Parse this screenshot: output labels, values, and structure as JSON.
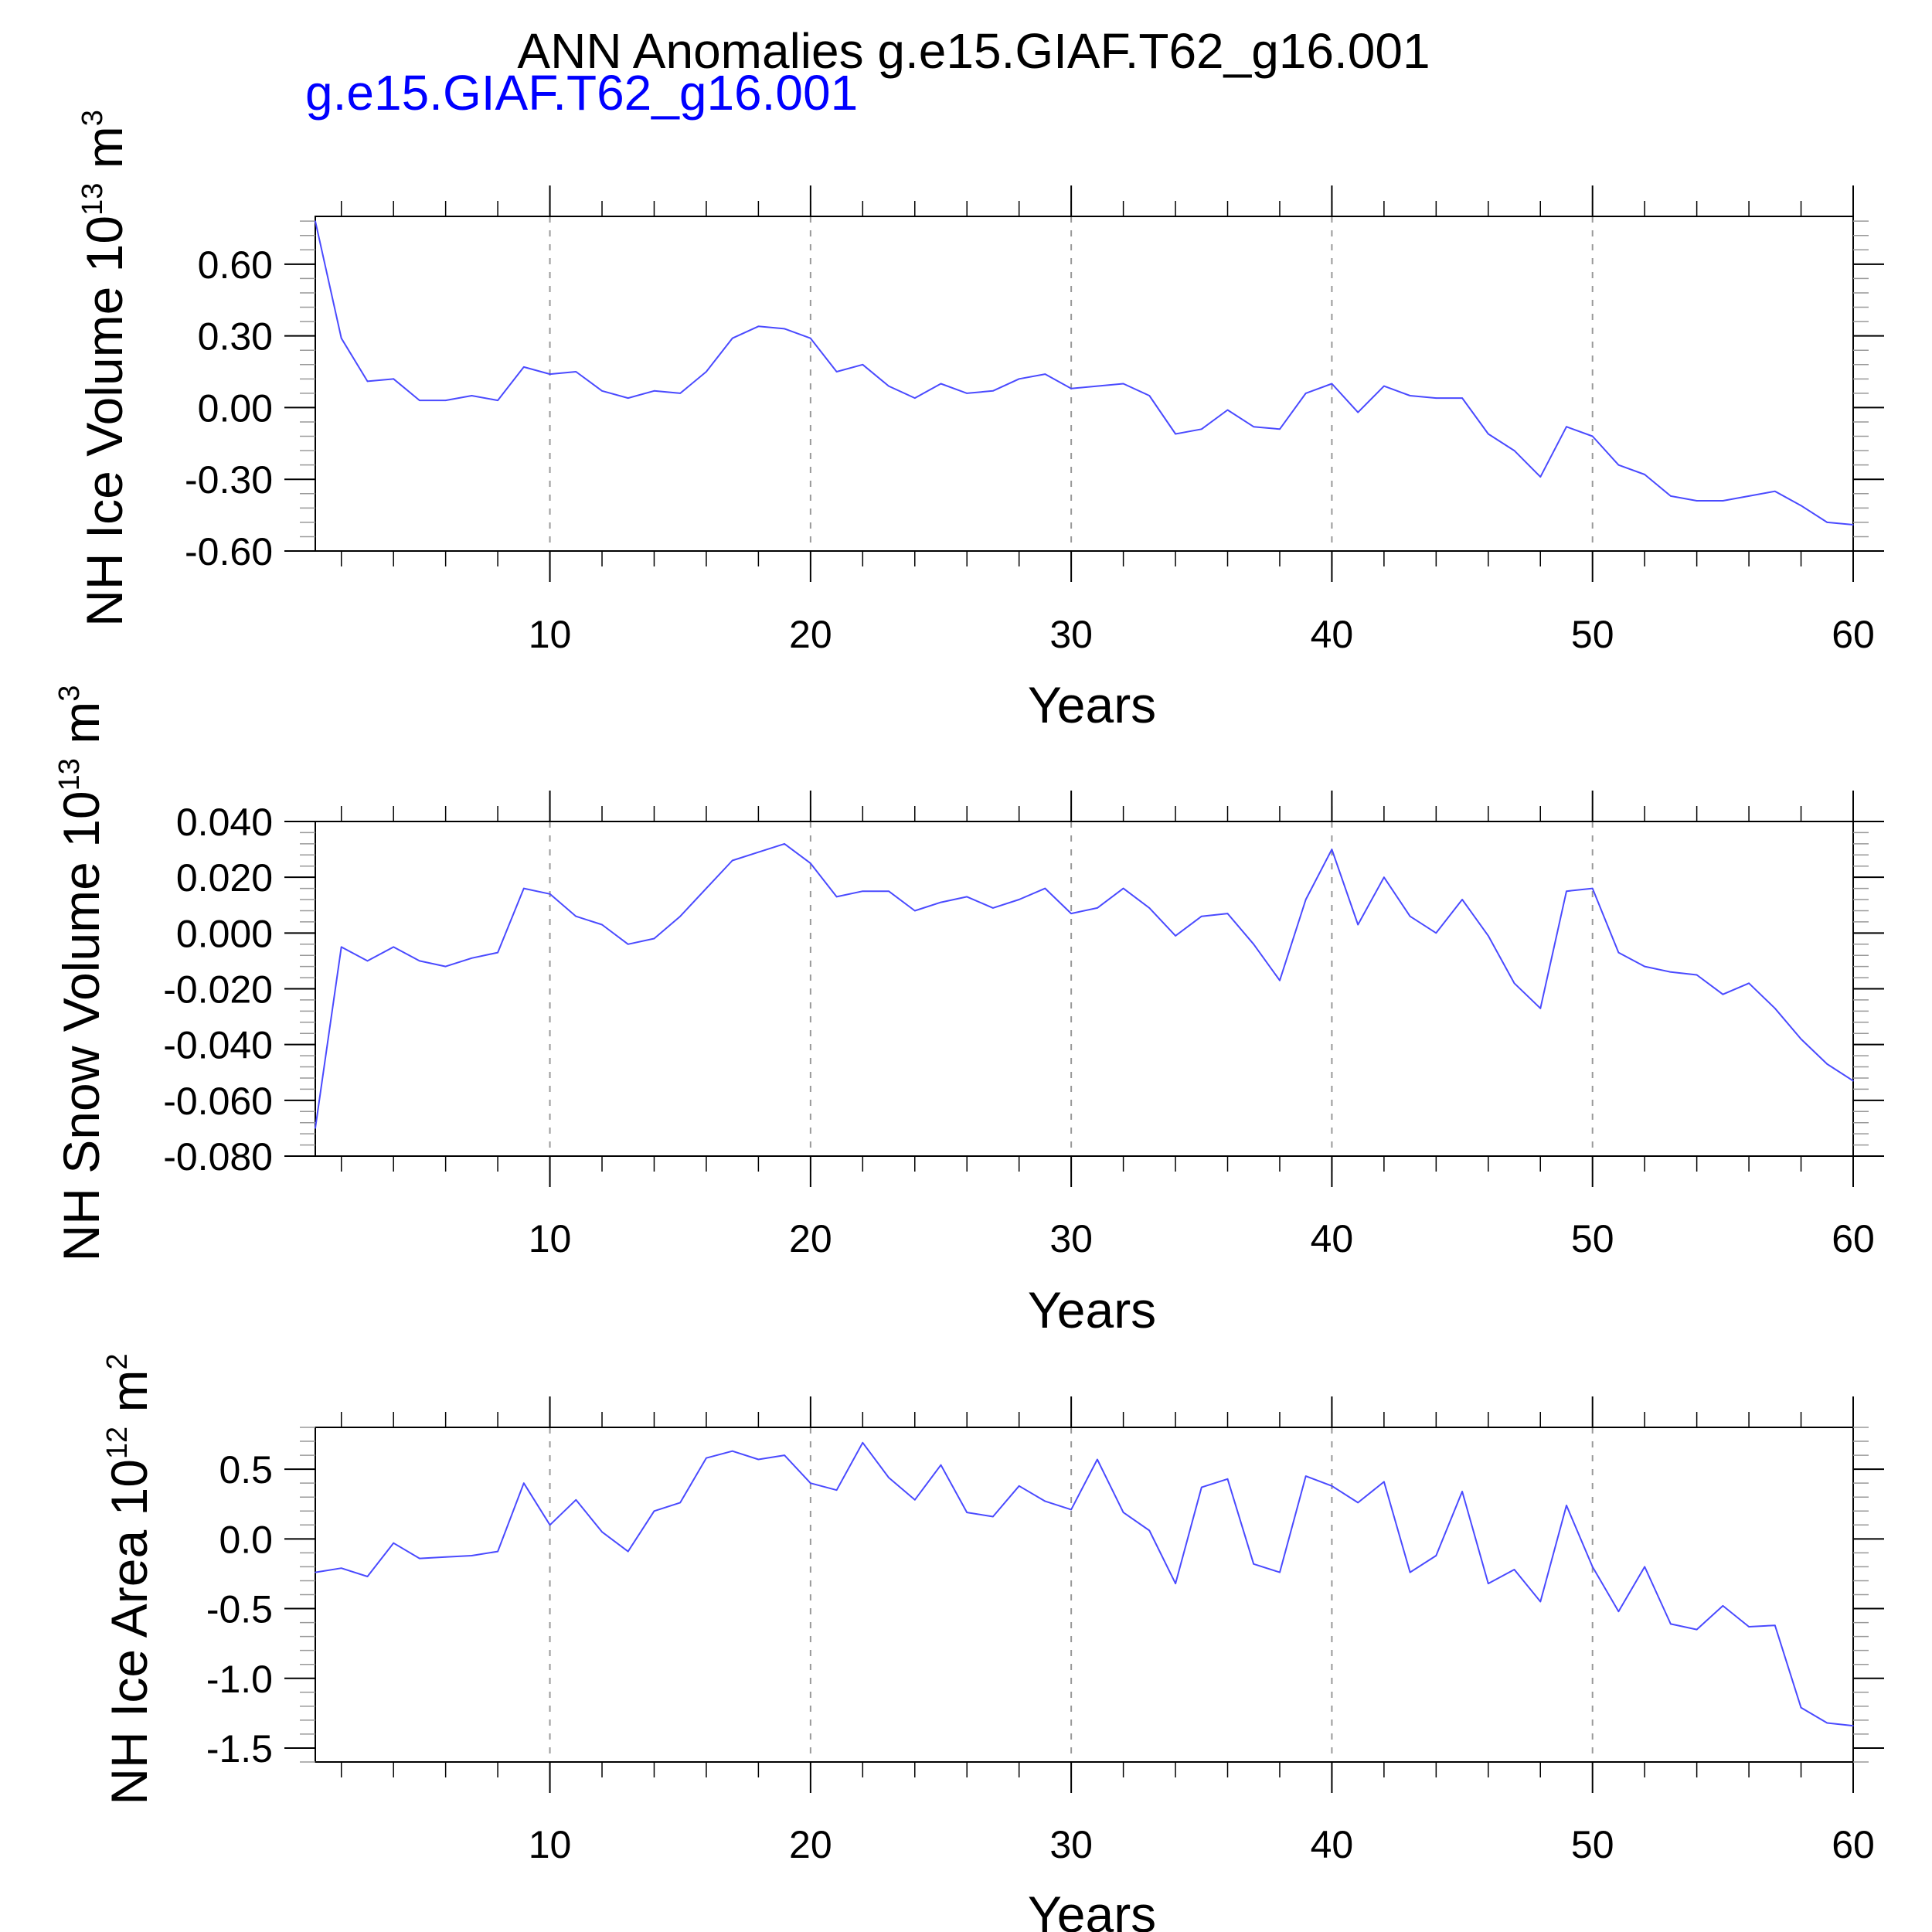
{
  "title": "ANN Anomalies g.e15.GIAF.T62_g16.001",
  "subtitle": "g.e15.GIAF.T62_g16.001",
  "colors": {
    "series": "#4a4aff",
    "subtitle": "#0000ff",
    "axis": "#000000",
    "grid": "#999999"
  },
  "chart_data": [
    {
      "type": "line",
      "ylabel": "NH Ice Volume 10",
      "ylabel_exponent": "13",
      "ylabel_unit": "m",
      "ylabel_unit_power": "3",
      "xlabel": "Years",
      "xlim": [
        1,
        60
      ],
      "ylim": [
        -0.6,
        0.8
      ],
      "yticks": [
        -0.6,
        -0.3,
        0.0,
        0.3,
        0.6
      ],
      "yticklabels": [
        "-0.60",
        "-0.30",
        "0.00",
        "0.30",
        "0.60"
      ],
      "xticks": [
        10,
        20,
        30,
        40,
        50,
        60
      ],
      "xticklabels": [
        "10",
        "20",
        "30",
        "40",
        "50",
        "60"
      ],
      "grid": "vertical dashed at major x ticks",
      "series": [
        {
          "x": [
            1,
            2,
            3,
            4,
            5,
            6,
            7,
            8,
            9,
            10,
            11,
            12,
            13,
            14,
            15,
            16,
            17,
            18,
            19,
            20,
            21,
            22,
            23,
            24,
            25,
            26,
            27,
            28,
            29,
            30,
            31,
            32,
            33,
            34,
            35,
            36,
            37,
            38,
            39,
            40,
            41,
            42,
            43,
            44,
            45,
            46,
            47,
            48,
            49,
            50,
            51,
            52,
            53,
            54,
            55,
            56,
            57,
            58,
            59,
            60
          ],
          "values": [
            0.78,
            0.29,
            0.11,
            0.12,
            0.03,
            0.03,
            0.05,
            0.03,
            0.17,
            0.14,
            0.15,
            0.07,
            0.04,
            0.07,
            0.06,
            0.15,
            0.29,
            0.34,
            0.33,
            0.29,
            0.15,
            0.18,
            0.09,
            0.04,
            0.1,
            0.06,
            0.07,
            0.12,
            0.14,
            0.08,
            0.09,
            0.1,
            0.05,
            -0.11,
            -0.09,
            -0.01,
            -0.08,
            -0.09,
            0.06,
            0.1,
            -0.02,
            0.09,
            0.05,
            0.04,
            0.04,
            -0.11,
            -0.18,
            -0.29,
            -0.08,
            -0.12,
            -0.24,
            -0.28,
            -0.37,
            -0.39,
            -0.39,
            -0.37,
            -0.35,
            -0.41,
            -0.48,
            -0.49
          ]
        }
      ]
    },
    {
      "type": "line",
      "ylabel": "NH Snow Volume 10",
      "ylabel_exponent": "13",
      "ylabel_unit": "m",
      "ylabel_unit_power": "3",
      "xlabel": "Years",
      "xlim": [
        1,
        60
      ],
      "ylim": [
        -0.08,
        0.04
      ],
      "yticks": [
        -0.08,
        -0.06,
        -0.04,
        -0.02,
        0.0,
        0.02,
        0.04
      ],
      "yticklabels": [
        "-0.080",
        "-0.060",
        "-0.040",
        "-0.020",
        "0.000",
        "0.020",
        "0.040"
      ],
      "xticks": [
        10,
        20,
        30,
        40,
        50,
        60
      ],
      "xticklabels": [
        "10",
        "20",
        "30",
        "40",
        "50",
        "60"
      ],
      "grid": "vertical dashed at major x ticks",
      "series": [
        {
          "x": [
            1,
            2,
            3,
            4,
            5,
            6,
            7,
            8,
            9,
            10,
            11,
            12,
            13,
            14,
            15,
            16,
            17,
            18,
            19,
            20,
            21,
            22,
            23,
            24,
            25,
            26,
            27,
            28,
            29,
            30,
            31,
            32,
            33,
            34,
            35,
            36,
            37,
            38,
            39,
            40,
            41,
            42,
            43,
            44,
            45,
            46,
            47,
            48,
            49,
            50,
            51,
            52,
            53,
            54,
            55,
            56,
            57,
            58,
            59,
            60
          ],
          "values": [
            -0.07,
            -0.005,
            -0.01,
            -0.005,
            -0.01,
            -0.012,
            -0.009,
            -0.007,
            0.016,
            0.014,
            0.006,
            0.003,
            -0.004,
            -0.002,
            0.006,
            0.016,
            0.026,
            0.029,
            0.032,
            0.025,
            0.013,
            0.015,
            0.015,
            0.008,
            0.011,
            0.013,
            0.009,
            0.012,
            0.016,
            0.007,
            0.009,
            0.016,
            0.009,
            -0.001,
            0.006,
            0.007,
            -0.004,
            -0.017,
            0.012,
            0.03,
            0.003,
            0.02,
            0.006,
            0.0,
            0.012,
            -0.001,
            -0.018,
            -0.027,
            0.015,
            0.016,
            -0.007,
            -0.012,
            -0.014,
            -0.015,
            -0.022,
            -0.018,
            -0.027,
            -0.038,
            -0.047,
            -0.053
          ]
        }
      ]
    },
    {
      "type": "line",
      "ylabel": "NH Ice Area 10",
      "ylabel_exponent": "12",
      "ylabel_unit": "m",
      "ylabel_unit_power": "2",
      "xlabel": "Years",
      "xlim": [
        1,
        60
      ],
      "ylim": [
        -1.6,
        0.8
      ],
      "yticks": [
        -1.5,
        -1.0,
        -0.5,
        0.0,
        0.5
      ],
      "yticklabels": [
        "-1.5",
        "-1.0",
        "-0.5",
        "0.0",
        "0.5"
      ],
      "xticks": [
        10,
        20,
        30,
        40,
        50,
        60
      ],
      "xticklabels": [
        "10",
        "20",
        "30",
        "40",
        "50",
        "60"
      ],
      "grid": "vertical dashed at major x ticks",
      "series": [
        {
          "x": [
            1,
            2,
            3,
            4,
            5,
            6,
            7,
            8,
            9,
            10,
            11,
            12,
            13,
            14,
            15,
            16,
            17,
            18,
            19,
            20,
            21,
            22,
            23,
            24,
            25,
            26,
            27,
            28,
            29,
            30,
            31,
            32,
            33,
            34,
            35,
            36,
            37,
            38,
            39,
            40,
            41,
            42,
            43,
            44,
            45,
            46,
            47,
            48,
            49,
            50,
            51,
            52,
            53,
            54,
            55,
            56,
            57,
            58,
            59,
            60
          ],
          "values": [
            -0.24,
            -0.21,
            -0.27,
            -0.03,
            -0.14,
            -0.13,
            -0.12,
            -0.09,
            0.4,
            0.1,
            0.28,
            0.05,
            -0.09,
            0.2,
            0.26,
            0.58,
            0.63,
            0.57,
            0.6,
            0.4,
            0.35,
            0.69,
            0.44,
            0.28,
            0.53,
            0.19,
            0.16,
            0.38,
            0.27,
            0.21,
            0.57,
            0.19,
            0.06,
            -0.32,
            0.37,
            0.43,
            -0.18,
            -0.24,
            0.45,
            0.38,
            0.26,
            0.41,
            -0.24,
            -0.12,
            0.34,
            -0.32,
            -0.22,
            -0.45,
            0.24,
            -0.2,
            -0.52,
            -0.2,
            -0.61,
            -0.65,
            -0.48,
            -0.63,
            -0.62,
            -1.21,
            -1.32,
            -1.34
          ]
        }
      ]
    }
  ]
}
